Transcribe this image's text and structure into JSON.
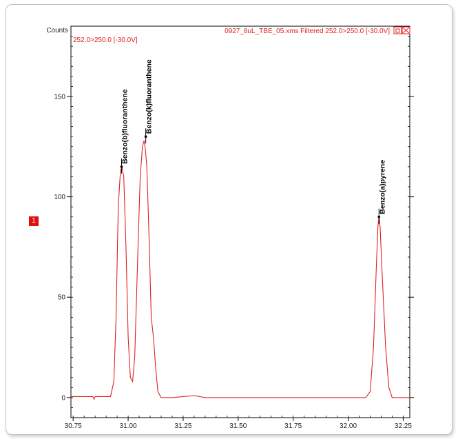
{
  "badge": {
    "label": "1"
  },
  "chart_data": {
    "type": "line",
    "ylabel": "Counts",
    "trace_label": "252.0>250.0 [-30.0V]",
    "file_label": "0927_8uL_TBE_05.xms Filtered 252.0>250.0 [-30.0V]",
    "window_icons": [
      "restore-icon",
      "close-icon"
    ],
    "xlim": [
      30.74,
      32.28
    ],
    "ylim": [
      -10,
      185
    ],
    "x_ticks": [
      30.75,
      31.0,
      31.25,
      31.5,
      31.75,
      32.0,
      32.25
    ],
    "x_tick_labels": [
      "30.75",
      "31.00",
      "31.25",
      "31.50",
      "31.75",
      "32.00",
      "32.25"
    ],
    "y_ticks": [
      0,
      50,
      100,
      150
    ],
    "y_tick_labels": [
      "0",
      "50",
      "100",
      "150"
    ],
    "grid": false,
    "line_color": "#e02020",
    "peaks": [
      {
        "name": "Benzo(b)fluoranthene",
        "rt": 30.97,
        "height": 115
      },
      {
        "name": "Benzo(k)fluoranthene",
        "rt": 31.08,
        "height": 130
      },
      {
        "name": "Benzo(a)pyrene",
        "rt": 32.14,
        "height": 90
      }
    ],
    "series": [
      {
        "x": [
          30.74,
          30.84,
          30.845,
          30.85,
          30.92,
          30.935,
          30.945,
          30.955,
          30.965,
          30.972,
          30.98,
          30.99,
          31.0,
          31.01,
          31.02,
          31.03,
          31.045,
          31.055,
          31.065,
          31.072,
          31.078,
          31.085,
          31.095,
          31.105,
          31.115,
          31.125,
          31.135,
          31.15,
          31.2,
          31.3,
          31.35,
          31.5,
          31.66,
          31.95,
          32.08,
          32.1,
          32.115,
          32.128,
          32.135,
          32.14,
          32.145,
          32.155,
          32.17,
          32.185,
          32.2,
          32.22,
          32.28
        ],
        "y": [
          0.5,
          0.5,
          -0.8,
          0.5,
          0.5,
          8,
          40,
          95,
          113,
          115,
          110,
          75,
          30,
          10,
          8,
          20,
          75,
          110,
          125,
          128,
          124,
          115,
          80,
          40,
          30,
          15,
          3,
          0,
          0,
          1,
          0,
          0,
          0,
          0,
          0,
          3,
          25,
          65,
          85,
          90,
          85,
          60,
          25,
          5,
          0,
          0,
          0
        ]
      }
    ]
  }
}
